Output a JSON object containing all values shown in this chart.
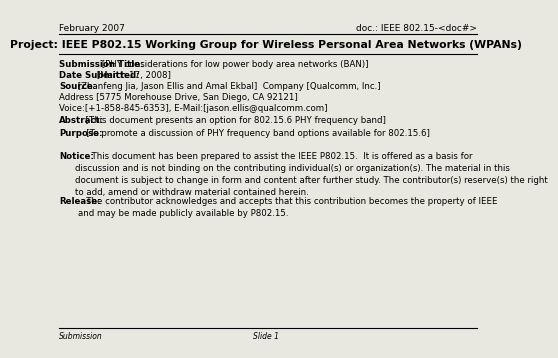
{
  "bg_color": "#e8e8e0",
  "header_left": "February 2007",
  "header_right": "doc.: IEEE 802.15-<doc#>",
  "title": "Project: IEEE P802.15 Working Group for Wireless Personal Area Networks (WPANs)",
  "submission_title_bold": "Submission Title:",
  "submission_title_text": " [PHY considerations for low power body area networks (BAN)]",
  "date_bold": "Date Submitted:",
  "date_text": " [March 17, 2008]",
  "source_bold": "Source:",
  "source_text": " [Zhanfeng Jia, Jason Ellis and Amal Ekbal]  Company [Qualcomm, Inc.]",
  "address_text": "Address [5775 Morehouse Drive, San Diego, CA 92121]",
  "voice_text": "Voice:[+1-858-845-6353], E-Mail:[jason.ellis@qualcomm.com]",
  "abstract_bold": "Abstract:",
  "abstract_text": "  [This document presents an option for 802.15.6 PHY frequency band]",
  "purpose_bold": "Purpose:",
  "purpose_text": "   [To promote a discussion of PHY frequency band options available for 802.15.6]",
  "notice_bold": "Notice:",
  "notice_text": "      This document has been prepared to assist the IEEE P802.15.  It is offered as a basis for\ndiscussion and is not binding on the contributing individual(s) or organization(s). The material in this\ndocument is subject to change in form and content after further study. The contributor(s) reserve(s) the right\nto add, amend or withdraw material contained herein.",
  "release_bold": "Release:",
  "release_text": "   The contributor acknowledges and accepts that this contribution becomes the property of IEEE\nand may be made publicly available by P802.15.",
  "footer_left": "Submission",
  "footer_center": "Slide 1",
  "font_family": "DejaVu Sans"
}
